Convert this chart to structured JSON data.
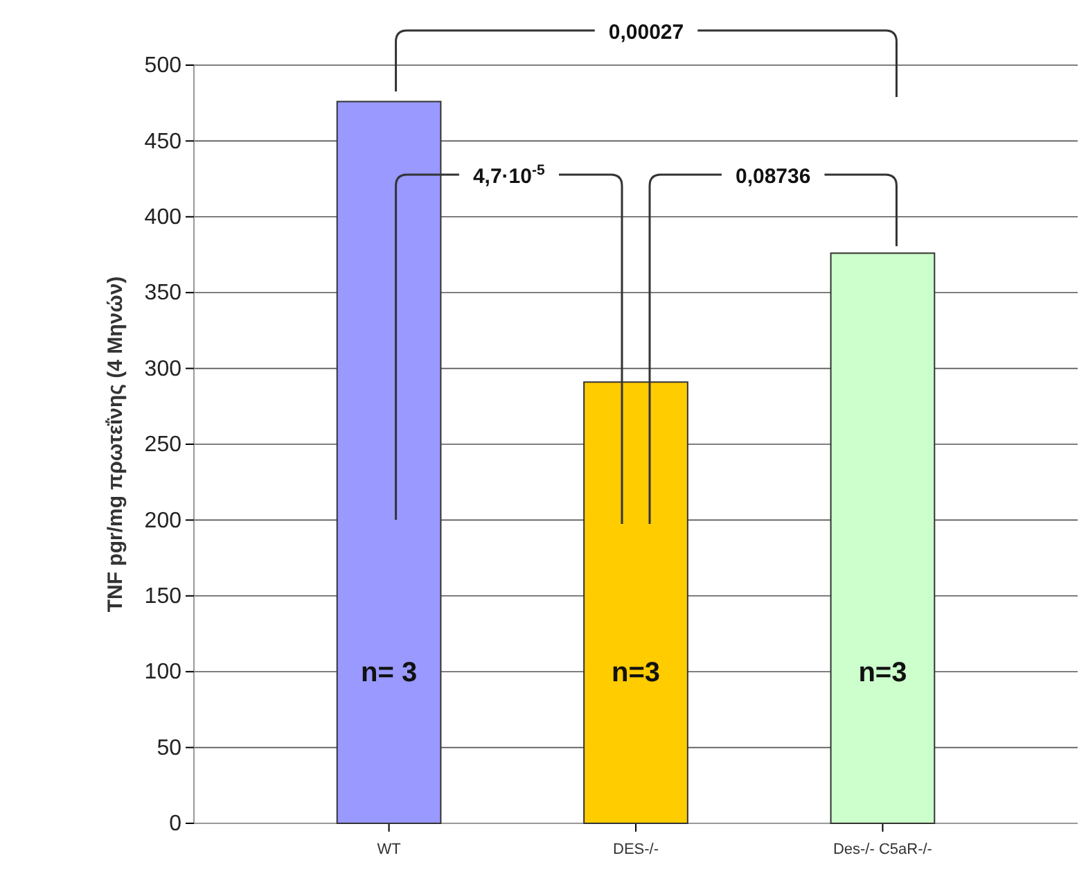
{
  "chart_data": {
    "type": "bar",
    "ylabel": "TNF pgr/mg πρωτεΐνης (4 Μηνών)",
    "categories": [
      "WT",
      "DES-/-",
      "Des-/- C5aR-/-"
    ],
    "values": [
      476,
      291,
      376
    ],
    "colors": [
      "#9999ff",
      "#ffcc00",
      "#ccffcc"
    ],
    "ylim": [
      0,
      500
    ],
    "yticks": [
      0,
      50,
      100,
      150,
      200,
      250,
      300,
      350,
      400,
      450,
      500
    ],
    "grid": "y",
    "annotations": [
      "0,00027",
      "4,7·10$^{-5}$",
      "0,08736",
      "n= 3",
      "n=3",
      "n=3"
    ]
  }
}
